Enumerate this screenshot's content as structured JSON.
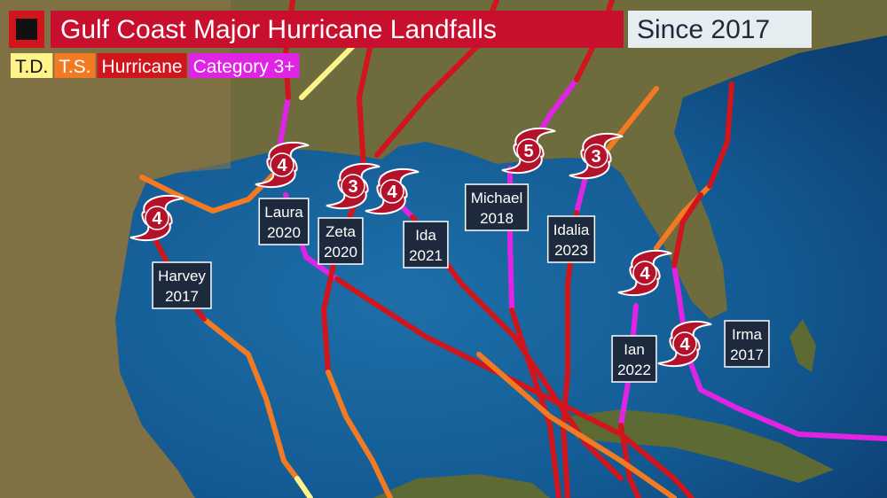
{
  "header": {
    "title": "Gulf Coast Major Hurricane Landfalls",
    "subtitle": "Since 2017"
  },
  "legend": [
    {
      "label": "T.D.",
      "color": "#fff38a"
    },
    {
      "label": "T.S.",
      "color": "#f27a22"
    },
    {
      "label": "Hurricane",
      "color": "#d0151c"
    },
    {
      "label": "Category 3+",
      "color": "#e024e6"
    }
  ],
  "storms": [
    {
      "name": "Harvey",
      "year": 2017,
      "category": 4
    },
    {
      "name": "Laura",
      "year": 2020,
      "category": 4
    },
    {
      "name": "Zeta",
      "year": 2020,
      "category": 3
    },
    {
      "name": "Ida",
      "year": 2021,
      "category": 4
    },
    {
      "name": "Michael",
      "year": 2018,
      "category": 5
    },
    {
      "name": "Idalia",
      "year": 2023,
      "category": 3
    },
    {
      "name": "Ian",
      "year": 2022,
      "category": 4
    },
    {
      "name": "Irma",
      "year": 2017,
      "category": 4
    }
  ]
}
